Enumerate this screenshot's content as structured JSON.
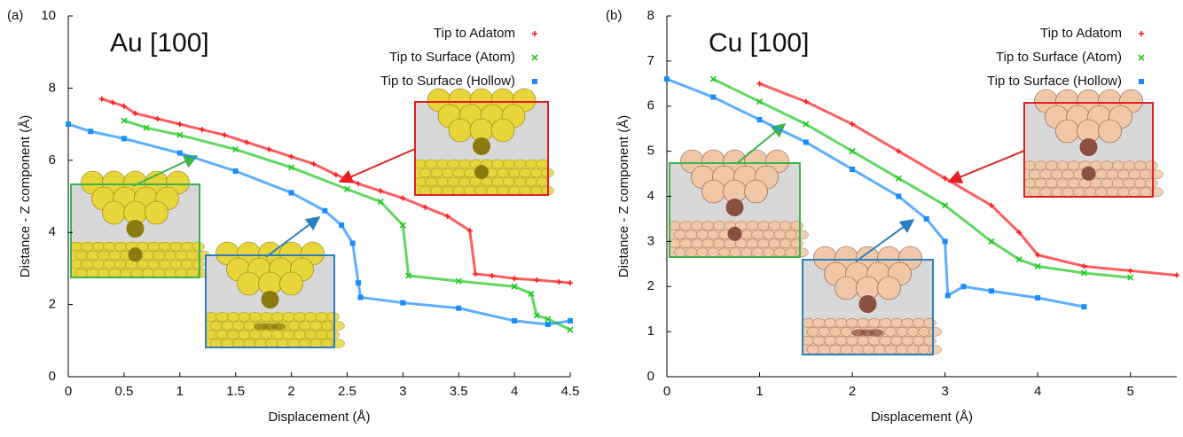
{
  "chart_data": [
    {
      "type": "scatter",
      "panel_label": "(a)",
      "annotation": "Au [100]",
      "xlabel": "Displacement (Å)",
      "ylabel": "Distance - Z component (Å)",
      "xlim": [
        0,
        4.5
      ],
      "ylim": [
        0,
        10
      ],
      "xticks": [
        0,
        0.5,
        1,
        1.5,
        2,
        2.5,
        3,
        3.5,
        4,
        4.5
      ],
      "yticks": [
        0,
        2,
        4,
        6,
        8,
        10
      ],
      "legend": "upper right",
      "series": [
        {
          "name": "Tip to Adatom",
          "color": "#ff1a1a",
          "marker": "plus",
          "x": [
            0.3,
            0.4,
            0.5,
            0.6,
            0.8,
            1.0,
            1.2,
            1.4,
            1.6,
            1.8,
            2.0,
            2.2,
            2.4,
            2.6,
            2.8,
            3.0,
            3.2,
            3.4,
            3.6,
            3.65,
            3.8,
            4.0,
            4.2,
            4.4,
            4.5
          ],
          "values": [
            7.7,
            7.6,
            7.5,
            7.3,
            7.15,
            7.0,
            6.85,
            6.7,
            6.5,
            6.3,
            6.1,
            5.9,
            5.6,
            5.35,
            5.15,
            4.95,
            4.7,
            4.45,
            4.05,
            2.85,
            2.8,
            2.72,
            2.68,
            2.63,
            2.6
          ]
        },
        {
          "name": "Tip to Surface (Atom)",
          "color": "#1ec81e",
          "marker": "cross",
          "x": [
            0.5,
            0.7,
            1.0,
            1.5,
            2.0,
            2.5,
            2.8,
            3.0,
            3.05,
            3.5,
            4.0,
            4.15,
            4.2,
            4.3,
            4.5
          ],
          "values": [
            7.1,
            6.9,
            6.7,
            6.3,
            5.8,
            5.2,
            4.85,
            4.2,
            2.8,
            2.65,
            2.5,
            2.3,
            1.7,
            1.6,
            1.3
          ]
        },
        {
          "name": "Tip to Surface (Hollow)",
          "color": "#1a8cff",
          "marker": "square",
          "x": [
            0,
            0.2,
            0.5,
            1.0,
            1.5,
            2.0,
            2.3,
            2.45,
            2.55,
            2.6,
            2.62,
            3.0,
            3.5,
            4.0,
            4.3,
            4.5
          ],
          "values": [
            7.0,
            6.8,
            6.6,
            6.2,
            5.7,
            5.1,
            4.6,
            4.2,
            3.7,
            2.6,
            2.2,
            2.05,
            1.9,
            1.55,
            1.45,
            1.55
          ]
        }
      ]
    },
    {
      "type": "scatter",
      "panel_label": "(b)",
      "annotation": "Cu [100]",
      "xlabel": "Displacement (Å)",
      "ylabel": "Distance - Z component (Å)",
      "xlim": [
        0,
        5.5
      ],
      "ylim": [
        0,
        8
      ],
      "xticks": [
        0,
        1,
        2,
        3,
        4,
        5
      ],
      "yticks": [
        0,
        1,
        2,
        3,
        4,
        5,
        6,
        7,
        8
      ],
      "legend": "upper right",
      "series": [
        {
          "name": "Tip to Adatom",
          "color": "#ff1a1a",
          "marker": "plus",
          "x": [
            1.0,
            1.5,
            2.0,
            2.5,
            3.0,
            3.5,
            3.8,
            4.0,
            4.5,
            5.0,
            5.5
          ],
          "values": [
            6.5,
            6.1,
            5.6,
            5.0,
            4.4,
            3.8,
            3.2,
            2.7,
            2.45,
            2.35,
            2.25
          ]
        },
        {
          "name": "Tip to Surface (Atom)",
          "color": "#1ec81e",
          "marker": "cross",
          "x": [
            0.5,
            1.0,
            1.5,
            2.0,
            2.5,
            3.0,
            3.5,
            3.8,
            4.0,
            4.5,
            5.0
          ],
          "values": [
            6.6,
            6.1,
            5.6,
            5.0,
            4.4,
            3.8,
            3.0,
            2.6,
            2.45,
            2.3,
            2.2
          ]
        },
        {
          "name": "Tip to Surface (Hollow)",
          "color": "#1a8cff",
          "marker": "square",
          "x": [
            0,
            0.5,
            1.0,
            1.5,
            2.0,
            2.5,
            2.8,
            3.0,
            3.03,
            3.2,
            3.5,
            4.0,
            4.5
          ],
          "values": [
            6.6,
            6.2,
            5.7,
            5.2,
            4.6,
            4.0,
            3.5,
            3.0,
            1.8,
            2.0,
            1.9,
            1.75,
            1.55
          ]
        }
      ]
    }
  ]
}
